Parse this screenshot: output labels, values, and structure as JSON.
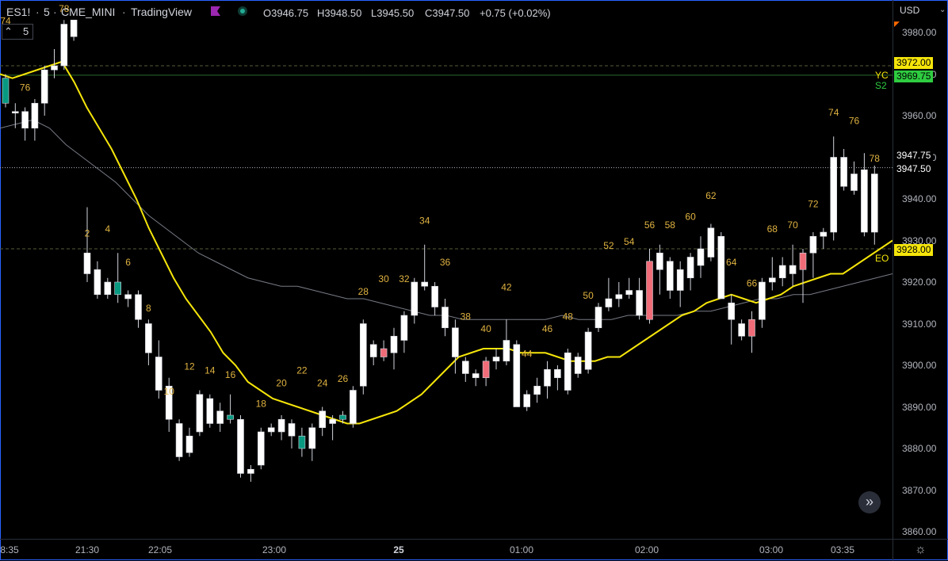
{
  "header": {
    "symbol": "ES1!",
    "interval": "5",
    "exchange": "CME_MINI",
    "source": "TradingView",
    "open": "O3946.75",
    "high": "H3948.50",
    "low": "L3945.50",
    "close": "C3947.50",
    "change": "+0.75 (+0.02%)"
  },
  "price_axis": {
    "currency": "USD",
    "ticks": [
      "3980.00",
      "3970.00",
      "3960.00",
      "3950.00",
      "3940.00",
      "3930.00",
      "3920.00",
      "3910.00",
      "3900.00",
      "3890.00",
      "3880.00",
      "3870.00",
      "3860.00"
    ]
  },
  "badges": {
    "yc": "3972.00",
    "s2": "3969.75",
    "last1": "3947.75",
    "last2": "3947.50",
    "eo": "3928.00"
  },
  "side_labels": {
    "yc": "YC",
    "s2": "S2",
    "eo": "EO"
  },
  "legend": {
    "fragment": "74",
    "value": "5"
  },
  "time_axis": {
    "ticks": [
      "8:35",
      "21:30",
      "22:05",
      "23:00",
      "25",
      "01:00",
      "02:00",
      "03:00",
      "03:35"
    ]
  },
  "colors": {
    "background": "#000000",
    "ema_fast": "#f5e50a",
    "ema_slow": "#787b86",
    "bear": "#f06c78",
    "bull_doji": "#089981",
    "bar_labels": "#e0b341",
    "yc": "#f5e50a",
    "s2": "#2ecc40",
    "eo": "#f5e50a"
  },
  "chart_data": {
    "type": "candlestick",
    "ylim": [
      3857,
      3986
    ],
    "bars": [
      {
        "n": "",
        "o": 3963,
        "h": 3970,
        "l": 3962,
        "c": 3969,
        "col": "green"
      },
      {
        "n": "",
        "o": 3961,
        "h": 3963,
        "l": 3957,
        "c": 3961,
        "col": "white"
      },
      {
        "n": "",
        "o": 3957,
        "h": 3962,
        "l": 3954,
        "c": 3961,
        "col": "white"
      },
      {
        "n": "",
        "o": 3957,
        "h": 3964,
        "l": 3954,
        "c": 3963,
        "col": "white"
      },
      {
        "n": "76",
        "o": 3963,
        "h": 3972,
        "l": 3960,
        "c": 3971,
        "col": "white"
      },
      {
        "n": "",
        "o": 3971,
        "h": 3976,
        "l": 3969,
        "c": 3972,
        "col": "white"
      },
      {
        "n": "78",
        "o": 3972,
        "h": 3983,
        "l": 3971,
        "c": 3982,
        "col": "white"
      },
      {
        "n": "",
        "o": 3979,
        "h": 3983,
        "l": 3978,
        "c": 3983,
        "col": "white"
      },
      {
        "n": "2",
        "o": 3922,
        "h": 3938,
        "l": 3920,
        "c": 3927,
        "col": "white"
      },
      {
        "n": "",
        "o": 3923,
        "h": 3925,
        "l": 3916,
        "c": 3917,
        "col": "white"
      },
      {
        "n": "4",
        "o": 3917,
        "h": 3921,
        "l": 3916,
        "c": 3920,
        "col": "white"
      },
      {
        "n": "6",
        "o": 3920,
        "h": 3927,
        "l": 3915,
        "c": 3917,
        "col": "green"
      },
      {
        "n": "",
        "o": 3916,
        "h": 3918,
        "l": 3914,
        "c": 3917,
        "col": "white"
      },
      {
        "n": "8",
        "o": 3911,
        "h": 3918,
        "l": 3909,
        "c": 3917,
        "col": "white"
      },
      {
        "n": "",
        "o": 3903,
        "h": 3911,
        "l": 3900,
        "c": 3910,
        "col": "white"
      },
      {
        "n": "10",
        "o": 3894,
        "h": 3906,
        "l": 3892,
        "c": 3902,
        "col": "white"
      },
      {
        "n": "",
        "o": 3887,
        "h": 3897,
        "l": 3884,
        "c": 3895,
        "col": "white"
      },
      {
        "n": "12",
        "o": 3878,
        "h": 3887,
        "l": 3877,
        "c": 3886,
        "col": "white"
      },
      {
        "n": "",
        "o": 3879,
        "h": 3885,
        "l": 3878,
        "c": 3883,
        "col": "white"
      },
      {
        "n": "14",
        "o": 3884,
        "h": 3894,
        "l": 3883,
        "c": 3893,
        "col": "white"
      },
      {
        "n": "",
        "o": 3886,
        "h": 3893,
        "l": 3885,
        "c": 3892,
        "col": "white"
      },
      {
        "n": "16",
        "o": 3886,
        "h": 3891,
        "l": 3884,
        "c": 3889,
        "col": "white"
      },
      {
        "n": "",
        "o": 3888,
        "h": 3893,
        "l": 3886,
        "c": 3887,
        "col": "green"
      },
      {
        "n": "",
        "o": 3874,
        "h": 3888,
        "l": 3873,
        "c": 3887,
        "col": "white"
      },
      {
        "n": "18",
        "o": 3874,
        "h": 3876,
        "l": 3872,
        "c": 3875,
        "col": "white"
      },
      {
        "n": "",
        "o": 3876,
        "h": 3885,
        "l": 3875,
        "c": 3884,
        "col": "white"
      },
      {
        "n": "20",
        "o": 3884,
        "h": 3886,
        "l": 3883,
        "c": 3885,
        "col": "white"
      },
      {
        "n": "",
        "o": 3884,
        "h": 3888,
        "l": 3882,
        "c": 3887,
        "col": "white"
      },
      {
        "n": "22",
        "o": 3883,
        "h": 3887,
        "l": 3880,
        "c": 3886,
        "col": "white"
      },
      {
        "n": "",
        "o": 3883,
        "h": 3885,
        "l": 3878,
        "c": 3880,
        "col": "green"
      },
      {
        "n": "24",
        "o": 3880,
        "h": 3886,
        "l": 3877,
        "c": 3885,
        "col": "white"
      },
      {
        "n": "",
        "o": 3885,
        "h": 3890,
        "l": 3883,
        "c": 3889,
        "col": "white"
      },
      {
        "n": "26",
        "o": 3886,
        "h": 3888,
        "l": 3882,
        "c": 3887,
        "col": "white"
      },
      {
        "n": "",
        "o": 3888,
        "h": 3889,
        "l": 3886,
        "c": 3887,
        "col": "green"
      },
      {
        "n": "28",
        "o": 3886,
        "h": 3895,
        "l": 3885,
        "c": 3894,
        "col": "white"
      },
      {
        "n": "",
        "o": 3895,
        "h": 3911,
        "l": 3893,
        "c": 3910,
        "col": "white"
      },
      {
        "n": "30",
        "o": 3902,
        "h": 3906,
        "l": 3900,
        "c": 3905,
        "col": "white"
      },
      {
        "n": "",
        "o": 3904,
        "h": 3906,
        "l": 3901,
        "c": 3902,
        "col": "red"
      },
      {
        "n": "32",
        "o": 3903,
        "h": 3909,
        "l": 3899,
        "c": 3907,
        "col": "white"
      },
      {
        "n": "",
        "o": 3906,
        "h": 3913,
        "l": 3903,
        "c": 3912,
        "col": "white"
      },
      {
        "n": "34",
        "o": 3912,
        "h": 3921,
        "l": 3910,
        "c": 3920,
        "col": "white"
      },
      {
        "n": "",
        "o": 3919,
        "h": 3929,
        "l": 3918,
        "c": 3920,
        "col": "white"
      },
      {
        "n": "36",
        "o": 3914,
        "h": 3920,
        "l": 3912,
        "c": 3919,
        "col": "white"
      },
      {
        "n": "",
        "o": 3909,
        "h": 3916,
        "l": 3907,
        "c": 3914,
        "col": "white"
      },
      {
        "n": "38",
        "o": 3902,
        "h": 3911,
        "l": 3898,
        "c": 3909,
        "col": "white"
      },
      {
        "n": "",
        "o": 3898,
        "h": 3902,
        "l": 3896,
        "c": 3901,
        "col": "white"
      },
      {
        "n": "40",
        "o": 3897,
        "h": 3899,
        "l": 3895,
        "c": 3898,
        "col": "white"
      },
      {
        "n": "",
        "o": 3901,
        "h": 3902,
        "l": 3895,
        "c": 3897,
        "col": "red"
      },
      {
        "n": "42",
        "o": 3902,
        "h": 3904,
        "l": 3899,
        "c": 3901,
        "col": "white"
      },
      {
        "n": "",
        "o": 3901,
        "h": 3911,
        "l": 3900,
        "c": 3906,
        "col": "white"
      },
      {
        "n": "44",
        "o": 3890,
        "h": 3906,
        "l": 3890,
        "c": 3905,
        "col": "white"
      },
      {
        "n": "",
        "o": 3890,
        "h": 3894,
        "l": 3889,
        "c": 3893,
        "col": "white"
      },
      {
        "n": "46",
        "o": 3893,
        "h": 3897,
        "l": 3891,
        "c": 3895,
        "col": "white"
      },
      {
        "n": "",
        "o": 3895,
        "h": 3901,
        "l": 3892,
        "c": 3899,
        "col": "white"
      },
      {
        "n": "48",
        "o": 3897,
        "h": 3900,
        "l": 3894,
        "c": 3899,
        "col": "white"
      },
      {
        "n": "",
        "o": 3894,
        "h": 3904,
        "l": 3893,
        "c": 3903,
        "col": "white"
      },
      {
        "n": "50",
        "o": 3898,
        "h": 3903,
        "l": 3897,
        "c": 3902,
        "col": "white"
      },
      {
        "n": "",
        "o": 3899,
        "h": 3909,
        "l": 3898,
        "c": 3908,
        "col": "white"
      },
      {
        "n": "52",
        "o": 3909,
        "h": 3915,
        "l": 3908,
        "c": 3914,
        "col": "white"
      },
      {
        "n": "",
        "o": 3914,
        "h": 3921,
        "l": 3913,
        "c": 3916,
        "col": "white"
      },
      {
        "n": "54",
        "o": 3916,
        "h": 3920,
        "l": 3914,
        "c": 3917,
        "col": "white"
      },
      {
        "n": "",
        "o": 3917,
        "h": 3921,
        "l": 3916,
        "c": 3918,
        "col": "white"
      },
      {
        "n": "56",
        "o": 3918,
        "h": 3921,
        "l": 3911,
        "c": 3912,
        "col": "white"
      },
      {
        "n": "",
        "o": 3925,
        "h": 3928,
        "l": 3910,
        "c": 3911,
        "col": "red"
      },
      {
        "n": "58",
        "o": 3923,
        "h": 3929,
        "l": 3917,
        "c": 3927,
        "col": "white"
      },
      {
        "n": "",
        "o": 3918,
        "h": 3926,
        "l": 3916,
        "c": 3925,
        "col": "white"
      },
      {
        "n": "60",
        "o": 3918,
        "h": 3925,
        "l": 3914,
        "c": 3923,
        "col": "white"
      },
      {
        "n": "",
        "o": 3921,
        "h": 3927,
        "l": 3918,
        "c": 3926,
        "col": "white"
      },
      {
        "n": "62",
        "o": 3924,
        "h": 3931,
        "l": 3921,
        "c": 3928,
        "col": "white"
      },
      {
        "n": "",
        "o": 3926,
        "h": 3934,
        "l": 3925,
        "c": 3933,
        "col": "white"
      },
      {
        "n": "64",
        "o": 3916,
        "h": 3932,
        "l": 3916,
        "c": 3931,
        "col": "white"
      },
      {
        "n": "",
        "o": 3911,
        "h": 3917,
        "l": 3905,
        "c": 3915,
        "col": "white"
      },
      {
        "n": "66",
        "o": 3907,
        "h": 3911,
        "l": 3906,
        "c": 3910,
        "col": "white"
      },
      {
        "n": "",
        "o": 3911,
        "h": 3913,
        "l": 3903,
        "c": 3907,
        "col": "red"
      },
      {
        "n": "68",
        "o": 3911,
        "h": 3921,
        "l": 3909,
        "c": 3920,
        "col": "white"
      },
      {
        "n": "",
        "o": 3920,
        "h": 3926,
        "l": 3918,
        "c": 3921,
        "col": "white"
      },
      {
        "n": "70",
        "o": 3921,
        "h": 3926,
        "l": 3919,
        "c": 3924,
        "col": "white"
      },
      {
        "n": "",
        "o": 3922,
        "h": 3929,
        "l": 3919,
        "c": 3924,
        "col": "white"
      },
      {
        "n": "72",
        "o": 3923,
        "h": 3928,
        "l": 3915,
        "c": 3927,
        "col": "red"
      },
      {
        "n": "",
        "o": 3927,
        "h": 3932,
        "l": 3921,
        "c": 3931,
        "col": "white"
      },
      {
        "n": "74",
        "o": 3931,
        "h": 3933,
        "l": 3928,
        "c": 3932,
        "col": "white"
      },
      {
        "n": "",
        "o": 3932,
        "h": 3955,
        "l": 3930,
        "c": 3950,
        "col": "white"
      },
      {
        "n": "76",
        "o": 3950,
        "h": 3952,
        "l": 3942,
        "c": 3943,
        "col": "white"
      },
      {
        "n": "",
        "o": 3942,
        "h": 3949,
        "l": 3941,
        "c": 3946,
        "col": "white"
      },
      {
        "n": "78",
        "o": 3947,
        "h": 3951,
        "l": 3931,
        "c": 3932,
        "col": "white"
      },
      {
        "n": "",
        "o": 3932,
        "h": 3948,
        "l": 3929,
        "c": 3946,
        "col": "white"
      }
    ],
    "bar_labels": [
      {
        "text": "74",
        "bar": 0,
        "price": 3982
      },
      {
        "text": "78",
        "bar": 6,
        "price": 3985
      },
      {
        "text": "76",
        "bar": 2,
        "price": 3966
      },
      {
        "text": "2",
        "bar": 8,
        "price": 3931
      },
      {
        "text": "4",
        "bar": 10,
        "price": 3932
      },
      {
        "text": "6",
        "bar": 12,
        "price": 3924
      },
      {
        "text": "8",
        "bar": 14,
        "price": 3913
      },
      {
        "text": "10",
        "bar": 16,
        "price": 3893
      },
      {
        "text": "12",
        "bar": 18,
        "price": 3899
      },
      {
        "text": "14",
        "bar": 20,
        "price": 3898
      },
      {
        "text": "16",
        "bar": 22,
        "price": 3897
      },
      {
        "text": "18",
        "bar": 25,
        "price": 3890
      },
      {
        "text": "20",
        "bar": 27,
        "price": 3895
      },
      {
        "text": "22",
        "bar": 29,
        "price": 3898
      },
      {
        "text": "24",
        "bar": 31,
        "price": 3895
      },
      {
        "text": "26",
        "bar": 33,
        "price": 3896
      },
      {
        "text": "28",
        "bar": 35,
        "price": 3917
      },
      {
        "text": "30",
        "bar": 37,
        "price": 3920
      },
      {
        "text": "32",
        "bar": 39,
        "price": 3920
      },
      {
        "text": "34",
        "bar": 41,
        "price": 3934
      },
      {
        "text": "36",
        "bar": 43,
        "price": 3924
      },
      {
        "text": "38",
        "bar": 45,
        "price": 3911
      },
      {
        "text": "40",
        "bar": 47,
        "price": 3908
      },
      {
        "text": "42",
        "bar": 49,
        "price": 3918
      },
      {
        "text": "44",
        "bar": 51,
        "price": 3902
      },
      {
        "text": "46",
        "bar": 53,
        "price": 3908
      },
      {
        "text": "48",
        "bar": 55,
        "price": 3911
      },
      {
        "text": "50",
        "bar": 57,
        "price": 3916
      },
      {
        "text": "52",
        "bar": 59,
        "price": 3928
      },
      {
        "text": "54",
        "bar": 61,
        "price": 3929
      },
      {
        "text": "56",
        "bar": 63,
        "price": 3933
      },
      {
        "text": "58",
        "bar": 65,
        "price": 3933
      },
      {
        "text": "60",
        "bar": 67,
        "price": 3935
      },
      {
        "text": "62",
        "bar": 69,
        "price": 3940
      },
      {
        "text": "64",
        "bar": 71,
        "price": 3924
      },
      {
        "text": "66",
        "bar": 73,
        "price": 3919
      },
      {
        "text": "68",
        "bar": 75,
        "price": 3932
      },
      {
        "text": "70",
        "bar": 77,
        "price": 3933
      },
      {
        "text": "72",
        "bar": 79,
        "price": 3938
      },
      {
        "text": "74",
        "bar": 81,
        "price": 3960
      },
      {
        "text": "76",
        "bar": 83,
        "price": 3958
      },
      {
        "text": "78",
        "bar": 85,
        "price": 3949
      }
    ],
    "ema_fast": [
      3970,
      3969,
      3970,
      3971,
      3972,
      3973,
      3968,
      3962,
      3957,
      3952,
      3946,
      3940,
      3933,
      3927,
      3921,
      3916,
      3912,
      3908,
      3903,
      3900,
      3896,
      3894,
      3892,
      3891,
      3890,
      3889,
      3888,
      3887,
      3886,
      3886,
      3887,
      3888,
      3889,
      3891,
      3893,
      3896,
      3899,
      3902,
      3903,
      3904,
      3904,
      3904,
      3903,
      3903,
      3903,
      3902,
      3901,
      3901,
      3901,
      3902,
      3902,
      3904,
      3906,
      3908,
      3910,
      3912,
      3913,
      3915,
      3916,
      3917,
      3916,
      3915,
      3916,
      3917,
      3919,
      3920,
      3921,
      3922,
      3922,
      3924,
      3926,
      3928,
      3930
    ],
    "ema_slow": [
      3957,
      3958,
      3959,
      3957,
      3953,
      3950,
      3947,
      3944,
      3940,
      3936,
      3933,
      3930,
      3927,
      3925,
      3923,
      3921,
      3920,
      3919,
      3919,
      3918,
      3917,
      3916,
      3916,
      3915,
      3914,
      3913,
      3912,
      3912,
      3911,
      3911,
      3911,
      3911,
      3911,
      3911,
      3912,
      3911,
      3911,
      3911,
      3912,
      3912,
      3912,
      3912,
      3913,
      3913,
      3914,
      3915,
      3916,
      3916,
      3917,
      3917,
      3918,
      3919,
      3920,
      3921,
      3922
    ]
  }
}
